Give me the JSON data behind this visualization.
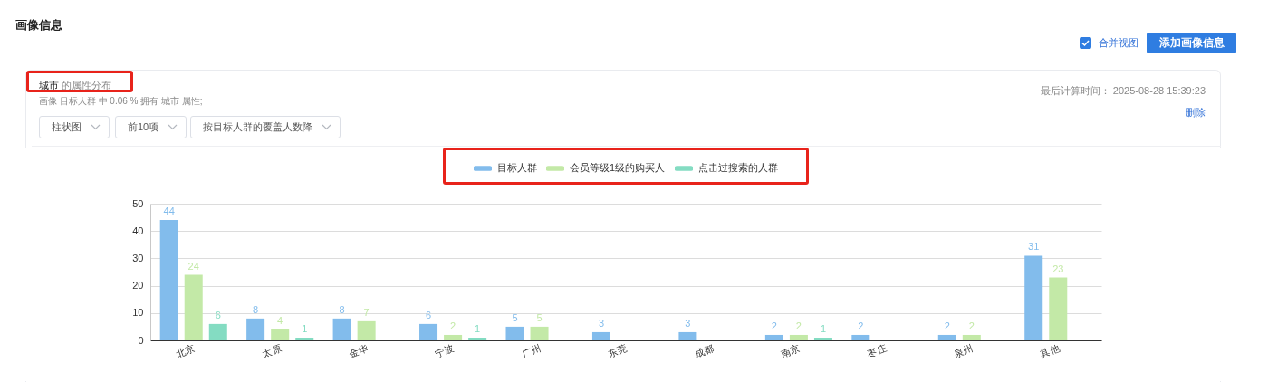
{
  "chart_data": {
    "type": "bar",
    "title": "城市 的属性分布",
    "subtitle": "画像 目标人群 中 0.06 % 拥有 城市 属性;",
    "annotations": [
      "画像信息",
      "合并视图",
      "添加画像信息",
      "柱状图",
      "前10项",
      "按目标人群的覆盖人数降",
      "最后计算时间： 2025-08-28 15:39:23",
      "删除"
    ],
    "categories": [
      "北京",
      "太原",
      "金华",
      "宁波",
      "广州",
      "东莞",
      "成都",
      "南京",
      "枣庄",
      "泉州",
      "其他"
    ],
    "series": [
      {
        "name": "目标人群",
        "color": "#82bcec",
        "values": [
          44,
          8,
          8,
          6,
          5,
          3,
          3,
          2,
          2,
          2,
          31
        ]
      },
      {
        "name": "会员等级1级的购买人",
        "color": "#c3e9a7",
        "values": [
          24,
          4,
          7,
          2,
          5,
          null,
          null,
          2,
          null,
          2,
          23
        ]
      },
      {
        "name": "点击过搜索的人群",
        "color": "#84dcc2",
        "values": [
          6,
          1,
          null,
          1,
          null,
          null,
          null,
          1,
          null,
          null,
          null
        ]
      }
    ],
    "ylim": [
      0,
      50
    ],
    "yticks": [
      0,
      10,
      20,
      30,
      40,
      50
    ],
    "grid": "y",
    "legend": "top",
    "data_labels": true
  }
}
